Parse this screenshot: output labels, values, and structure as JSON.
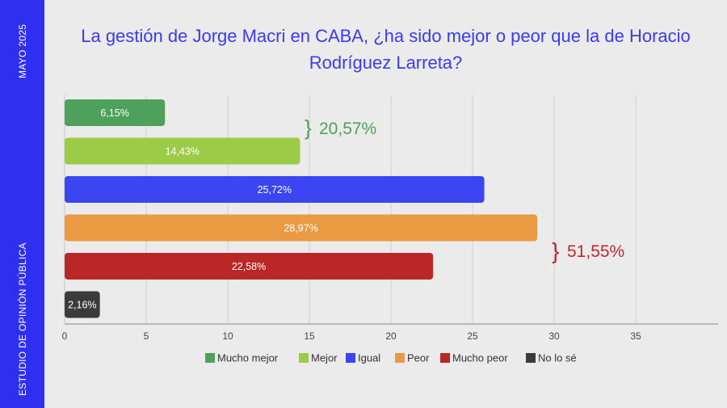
{
  "sidebar": {
    "top_text": "MAYO 2025",
    "bottom_text": "ESTUDIO DE OPINIÓN PÚBLICA"
  },
  "chart_data": {
    "type": "bar",
    "orientation": "horizontal",
    "title": "La gestión de Jorge Macri en CABA, ¿ha sido mejor o peor que la de Horacio Rodríguez Larreta?",
    "categories": [
      "Mucho mejor",
      "Mejor",
      "Igual",
      "Peor",
      "Mucho peor",
      "No lo sé"
    ],
    "values": [
      6.15,
      14.43,
      25.72,
      28.97,
      22.58,
      2.16
    ],
    "value_labels": [
      "6,15%",
      "14,43%",
      "25,72%",
      "28,97%",
      "22,58%",
      "2,16%"
    ],
    "colors": [
      "#4ea15b",
      "#9ccc47",
      "#3b46f0",
      "#ea9a42",
      "#b92727",
      "#3b3b3b"
    ],
    "xlim": [
      0,
      40
    ],
    "xticks": [
      0,
      5,
      10,
      15,
      20,
      25,
      30,
      35
    ],
    "xtick_labels": [
      "0",
      "5",
      "10",
      "15",
      "20",
      "25",
      "30",
      "35"
    ],
    "grid": true,
    "legend_position": "bottom",
    "annotations": [
      {
        "text": "20,57%",
        "brace": "}",
        "groups": [
          0,
          1
        ],
        "color": "#4ea15b"
      },
      {
        "text": "51,55%",
        "brace": "}",
        "groups": [
          3,
          4
        ],
        "color": "#c0272d"
      }
    ]
  }
}
